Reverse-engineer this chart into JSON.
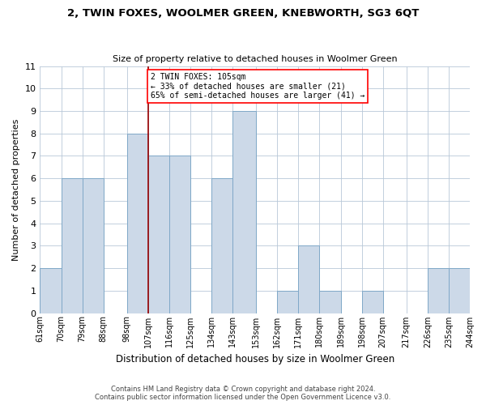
{
  "title": "2, TWIN FOXES, WOOLMER GREEN, KNEBWORTH, SG3 6QT",
  "subtitle": "Size of property relative to detached houses in Woolmer Green",
  "xlabel": "Distribution of detached houses by size in Woolmer Green",
  "ylabel": "Number of detached properties",
  "bin_labels": [
    "61sqm",
    "70sqm",
    "79sqm",
    "88sqm",
    "98sqm",
    "107sqm",
    "116sqm",
    "125sqm",
    "134sqm",
    "143sqm",
    "153sqm",
    "162sqm",
    "171sqm",
    "180sqm",
    "189sqm",
    "198sqm",
    "207sqm",
    "217sqm",
    "226sqm",
    "235sqm",
    "244sqm"
  ],
  "bin_edges": [
    61,
    70,
    79,
    88,
    98,
    107,
    116,
    125,
    134,
    143,
    153,
    162,
    171,
    180,
    189,
    198,
    207,
    217,
    226,
    235,
    244
  ],
  "counts": [
    2,
    6,
    6,
    0,
    8,
    7,
    7,
    0,
    6,
    9,
    0,
    1,
    3,
    1,
    0,
    1,
    0,
    0,
    2,
    2
  ],
  "bar_color": "#ccd9e8",
  "bar_edgecolor": "#7fa8c8",
  "redline_x": 107,
  "ylim": [
    0,
    11
  ],
  "yticks": [
    0,
    1,
    2,
    3,
    4,
    5,
    6,
    7,
    8,
    9,
    10,
    11
  ],
  "annotation_text": "2 TWIN FOXES: 105sqm\n← 33% of detached houses are smaller (21)\n65% of semi-detached houses are larger (41) →",
  "footer_line1": "Contains HM Land Registry data © Crown copyright and database right 2024.",
  "footer_line2": "Contains public sector information licensed under the Open Government Licence v3.0.",
  "background_color": "#ffffff",
  "grid_color": "#b8c8d8"
}
